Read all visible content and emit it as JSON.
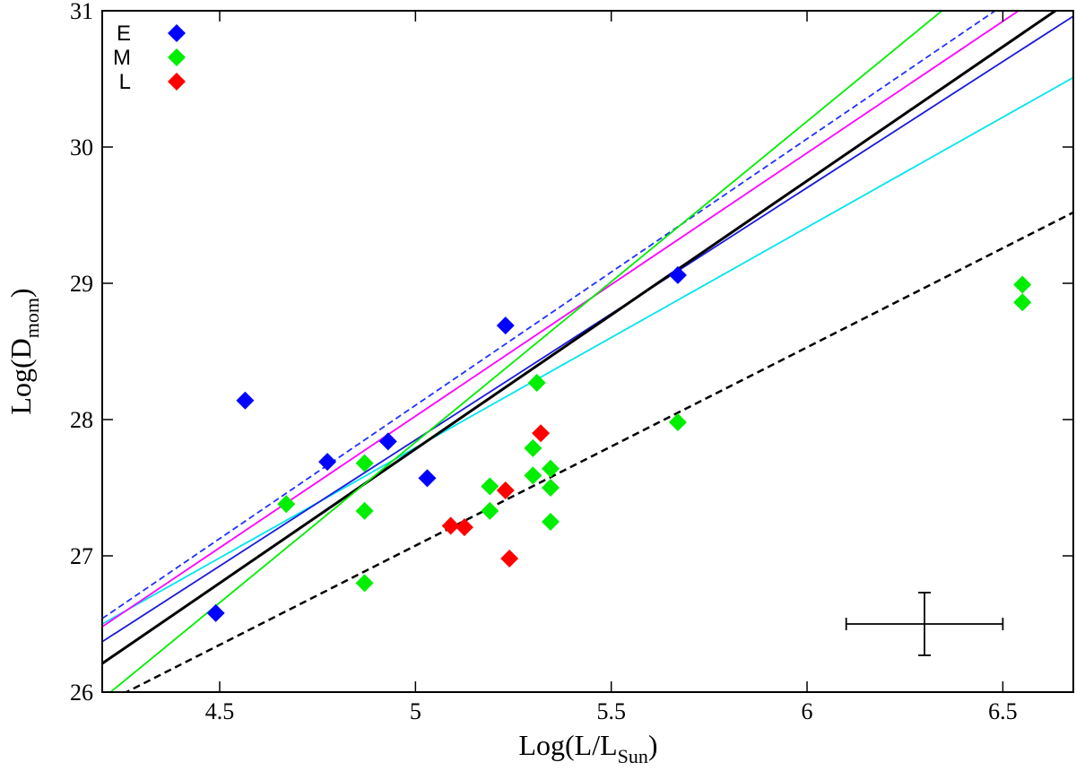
{
  "chart_data": {
    "type": "scatter",
    "xlabel": {
      "main": "Log(L/L",
      "sub": "Sun",
      "close": ")"
    },
    "ylabel": {
      "main": "Log(D",
      "sub": "mom",
      "close": ")"
    },
    "xlim": [
      4.2,
      6.68
    ],
    "ylim": [
      26,
      31
    ],
    "xticks": [
      4.5,
      5,
      5.5,
      6,
      6.5
    ],
    "xtick_labels": [
      "4.5",
      "5",
      "5.5",
      "6",
      "6.5"
    ],
    "yticks": [
      26,
      27,
      28,
      29,
      30,
      31
    ],
    "ytick_labels": [
      "26",
      "27",
      "28",
      "29",
      "30",
      "31"
    ],
    "legend_position": "top-left",
    "series": [
      {
        "name": "E",
        "color": "#0000ff",
        "marker": "diamond",
        "points": [
          [
            4.49,
            26.58
          ],
          [
            4.565,
            28.14
          ],
          [
            4.775,
            27.69
          ],
          [
            4.93,
            27.84
          ],
          [
            5.03,
            27.57
          ],
          [
            5.23,
            28.69
          ],
          [
            5.67,
            29.06
          ]
        ]
      },
      {
        "name": "M",
        "color": "#00ee00",
        "marker": "diamond",
        "points": [
          [
            4.67,
            27.38
          ],
          [
            4.87,
            27.68
          ],
          [
            4.87,
            27.33
          ],
          [
            4.87,
            26.8
          ],
          [
            5.19,
            27.51
          ],
          [
            5.19,
            27.33
          ],
          [
            5.31,
            28.27
          ],
          [
            5.3,
            27.79
          ],
          [
            5.3,
            27.59
          ],
          [
            5.345,
            27.64
          ],
          [
            5.345,
            27.5
          ],
          [
            5.345,
            27.25
          ],
          [
            5.67,
            27.98
          ],
          [
            6.55,
            28.99
          ],
          [
            6.55,
            28.86
          ]
        ]
      },
      {
        "name": "L",
        "color": "#ff0000",
        "marker": "diamond",
        "points": [
          [
            5.32,
            27.9
          ],
          [
            5.23,
            27.48
          ],
          [
            5.09,
            27.22
          ],
          [
            5.125,
            27.21
          ],
          [
            5.24,
            26.98
          ]
        ]
      }
    ],
    "fit_lines": [
      {
        "name": "black-dashed-fit",
        "color": "#000000",
        "dash": "8,5",
        "width": 2.5,
        "x": [
          4.2,
          6.68
        ],
        "y": [
          25.91,
          29.52
        ]
      },
      {
        "name": "cyan-fit",
        "color": "#00e5ee",
        "dash": "",
        "width": 1.8,
        "x": [
          4.2,
          6.68
        ],
        "y": [
          26.5,
          30.51
        ]
      },
      {
        "name": "blue-fit",
        "color": "#1a1adc",
        "dash": "",
        "width": 1.8,
        "x": [
          4.2,
          6.68
        ],
        "y": [
          26.37,
          30.96
        ]
      },
      {
        "name": "black-solid-fit",
        "color": "#000000",
        "dash": "",
        "width": 3,
        "x": [
          4.2,
          6.68
        ],
        "y": [
          26.21,
          31.09
        ]
      },
      {
        "name": "magenta-fit",
        "color": "#ff00ff",
        "dash": "",
        "width": 1.8,
        "x": [
          4.2,
          6.68
        ],
        "y": [
          26.48,
          31.27
        ]
      },
      {
        "name": "blue-dashed-fit",
        "color": "#2030ff",
        "dash": "7,4",
        "width": 1.8,
        "x": [
          4.2,
          6.68
        ],
        "y": [
          26.54,
          31.39
        ]
      },
      {
        "name": "green-fit",
        "color": "#00ee00",
        "dash": "",
        "width": 1.8,
        "x": [
          4.2,
          6.68
        ],
        "y": [
          25.95,
          31.79
        ]
      }
    ],
    "error_bar": {
      "x": 6.3,
      "y": 26.5,
      "xerr": 0.2,
      "yerr": 0.23
    }
  }
}
